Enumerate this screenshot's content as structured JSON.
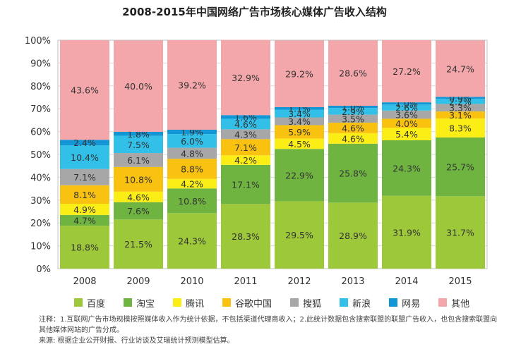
{
  "chart_data": {
    "type": "bar",
    "stacked": true,
    "title": "2008-2015年中国网络广告市场核心媒体广告收入结构",
    "categories": [
      "2008",
      "2009",
      "2010",
      "2011",
      "2012",
      "2013",
      "2014",
      "2015"
    ],
    "yticks": [
      "0%",
      "10%",
      "20%",
      "30%",
      "40%",
      "50%",
      "60%",
      "70%",
      "80%",
      "90%",
      "100%"
    ],
    "ylim": [
      0,
      100
    ],
    "grid": true,
    "legend_position": "bottom",
    "series": [
      {
        "name": "百度",
        "color": "#9DC83A",
        "values": [
          18.8,
          21.5,
          24.3,
          28.3,
          29.5,
          28.9,
          31.9,
          31.7
        ]
      },
      {
        "name": "淘宝",
        "color": "#6FB441",
        "values": [
          4.7,
          7.6,
          10.8,
          17.1,
          22.9,
          25.8,
          24.3,
          25.7
        ]
      },
      {
        "name": "腾讯",
        "color": "#FBEE17",
        "values": [
          4.9,
          4.6,
          4.2,
          4.2,
          4.5,
          4.6,
          5.4,
          8.3
        ]
      },
      {
        "name": "谷歌中国",
        "color": "#F9C110",
        "values": [
          8.1,
          10.8,
          8.8,
          7.1,
          5.9,
          4.6,
          4.0,
          3.1
        ]
      },
      {
        "name": "搜狐",
        "color": "#A8A7A7",
        "values": [
          7.1,
          6.1,
          4.8,
          4.3,
          3.4,
          3.5,
          3.6,
          3.3
        ]
      },
      {
        "name": "新浪",
        "color": "#32C0E9",
        "values": [
          10.4,
          7.5,
          6.0,
          4.6,
          3.4,
          2.9,
          2.6,
          2.2
        ]
      },
      {
        "name": "网易",
        "color": "#1296D6",
        "values": [
          2.4,
          1.8,
          1.9,
          1.6,
          1.1,
          1.0,
          1.0,
          0.9
        ]
      },
      {
        "name": "其他",
        "color": "#F3A7AA",
        "values": [
          43.6,
          40.0,
          39.2,
          32.9,
          29.2,
          28.6,
          27.2,
          24.7
        ]
      }
    ]
  },
  "footnote": {
    "line1": "注释：1.互联网广告市场规模按照媒体收入作为统计依据，不包括渠道代理商收入；2.此统计数据包含搜索联盟的联盟广告收入，也包含搜索联盟向其他媒体网站的广告分成。",
    "line2": "来源: 根据企业公开财报、行业访谈及艾瑞统计预测模型估算。"
  }
}
